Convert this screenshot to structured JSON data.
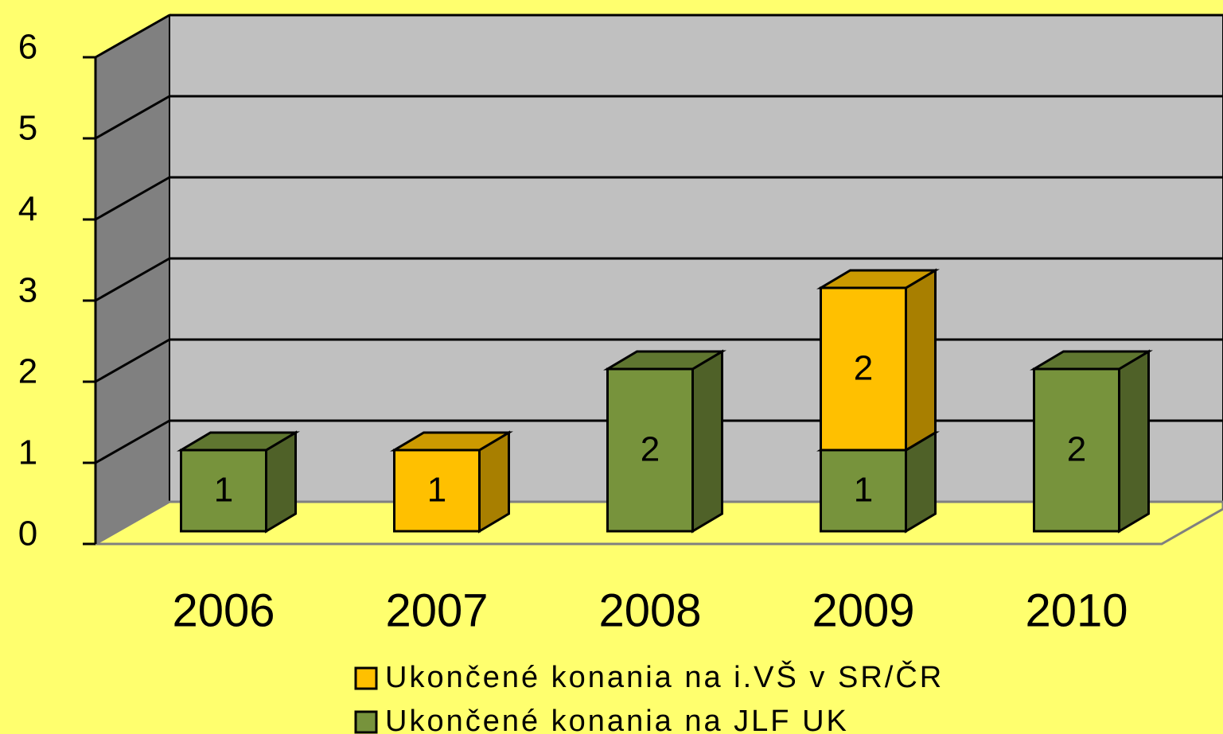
{
  "chart_data": {
    "type": "bar3d_stacked",
    "categories": [
      "2006",
      "2007",
      "2008",
      "2009",
      "2010"
    ],
    "series": [
      {
        "name": "Ukončené konania na i.VŠ v SR/ČR",
        "color": "#ffc000",
        "values": [
          0,
          1,
          0,
          2,
          0
        ]
      },
      {
        "name": "Ukončené konania na JLF UK",
        "color": "#77933c",
        "values": [
          1,
          0,
          2,
          1,
          2
        ]
      }
    ],
    "ylim": [
      0,
      6
    ],
    "yticks": [
      0,
      1,
      2,
      3,
      4,
      5,
      6
    ],
    "grid": true
  }
}
